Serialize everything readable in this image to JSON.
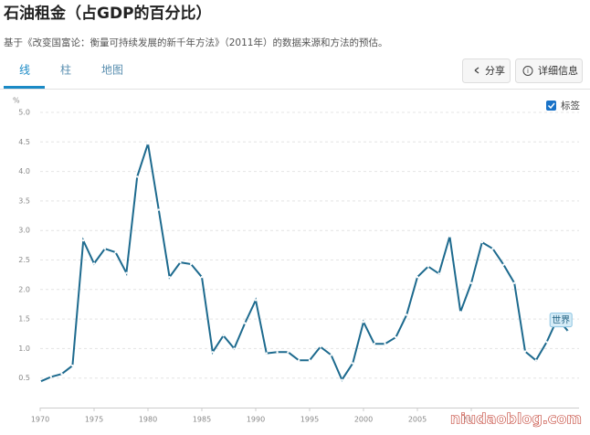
{
  "chart_data": {
    "type": "line",
    "title": "石油租金（占GDP的百分比）",
    "subtitle": "基于《改变国富论：衡量可持续发展的新千年方法》（2011年）的数据来源和方法的预估。",
    "tabs": [
      "线",
      "柱",
      "地图"
    ],
    "buttons": [
      "分享",
      "详细信息"
    ],
    "label_toggle": "标签",
    "y_unit": "%",
    "watermark": "niudaoblog.com",
    "x": [
      1970,
      1971,
      1972,
      1973,
      1974,
      1975,
      1976,
      1977,
      1978,
      1979,
      1980,
      1981,
      1982,
      1983,
      1984,
      1985,
      1986,
      1987,
      1988,
      1989,
      1990,
      1991,
      1992,
      1993,
      1994,
      1995,
      1996,
      1997,
      1998,
      1999,
      2000,
      2001,
      2002,
      2003,
      2004,
      2005,
      2006,
      2007,
      2008,
      2009,
      2010,
      2011,
      2012,
      2013,
      2014,
      2015,
      2016,
      2017,
      2018,
      2019
    ],
    "series": [
      {
        "name": "世界",
        "color": "#1d6a8e",
        "values": [
          0.44,
          0.52,
          0.57,
          0.71,
          2.83,
          2.44,
          2.69,
          2.63,
          2.28,
          3.91,
          4.47,
          3.35,
          2.21,
          2.46,
          2.43,
          2.21,
          0.94,
          1.22,
          1.0,
          1.43,
          1.82,
          0.92,
          0.94,
          0.94,
          0.8,
          0.8,
          1.03,
          0.89,
          0.47,
          0.75,
          1.45,
          1.08,
          1.08,
          1.19,
          1.57,
          2.21,
          2.39,
          2.27,
          2.9,
          1.62,
          2.11,
          2.8,
          2.69,
          2.42,
          2.11,
          0.95,
          0.8,
          1.11,
          1.51,
          1.29
        ]
      }
    ],
    "xlim": [
      1970,
      2020
    ],
    "xticks": [
      1970,
      1975,
      1980,
      1985,
      1990,
      1995,
      2000,
      2005,
      2010
    ],
    "ylim": [
      0,
      5
    ],
    "yticks": [
      0.5,
      {
        "value": 1,
        "label": "1.0"
      },
      1.5,
      {
        "value": 2,
        "label": "2.0"
      },
      2.5,
      {
        "value": 3,
        "label": "3.0"
      },
      3.5,
      {
        "value": 4,
        "label": "4.0"
      },
      4.5,
      {
        "value": 5,
        "label": "5.0"
      }
    ],
    "grid": true
  }
}
